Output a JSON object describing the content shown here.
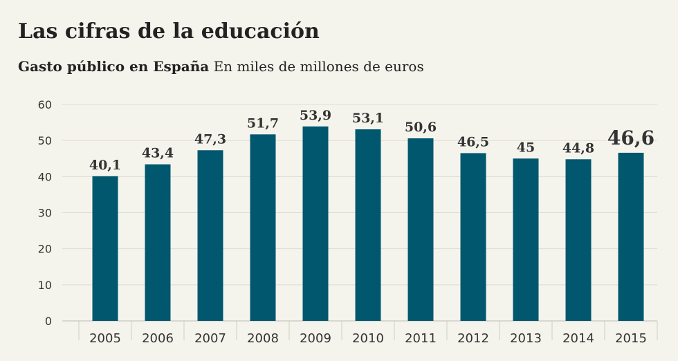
{
  "header": {
    "title": "Las cifras de la educación",
    "subtitle_bold": "Gasto público en España",
    "subtitle_rest": "En miles de millones de euros"
  },
  "colors": {
    "bar": "#00576e",
    "background": "#f5f4ec",
    "grid": "#dcdbd2",
    "text": "#333333"
  },
  "chart_data": {
    "type": "bar",
    "title": "Las cifras de la educación",
    "subtitle": "Gasto público en España En miles de millones de euros",
    "categories": [
      "2005",
      "2006",
      "2007",
      "2008",
      "2009",
      "2010",
      "2011",
      "2012",
      "2013",
      "2014",
      "2015"
    ],
    "values": [
      40.1,
      43.4,
      47.3,
      51.7,
      53.9,
      53.1,
      50.6,
      46.5,
      45,
      44.8,
      46.6
    ],
    "value_labels": [
      "40,1",
      "43,4",
      "47,3",
      "51,7",
      "53,9",
      "53,1",
      "50,6",
      "46,5",
      "45",
      "44,8",
      "46,6"
    ],
    "highlight_index": 10,
    "ylim": [
      0,
      60
    ],
    "yticks": [
      "0",
      "10",
      "20",
      "30",
      "40",
      "50",
      "60"
    ],
    "grid": true,
    "legend": "none"
  }
}
